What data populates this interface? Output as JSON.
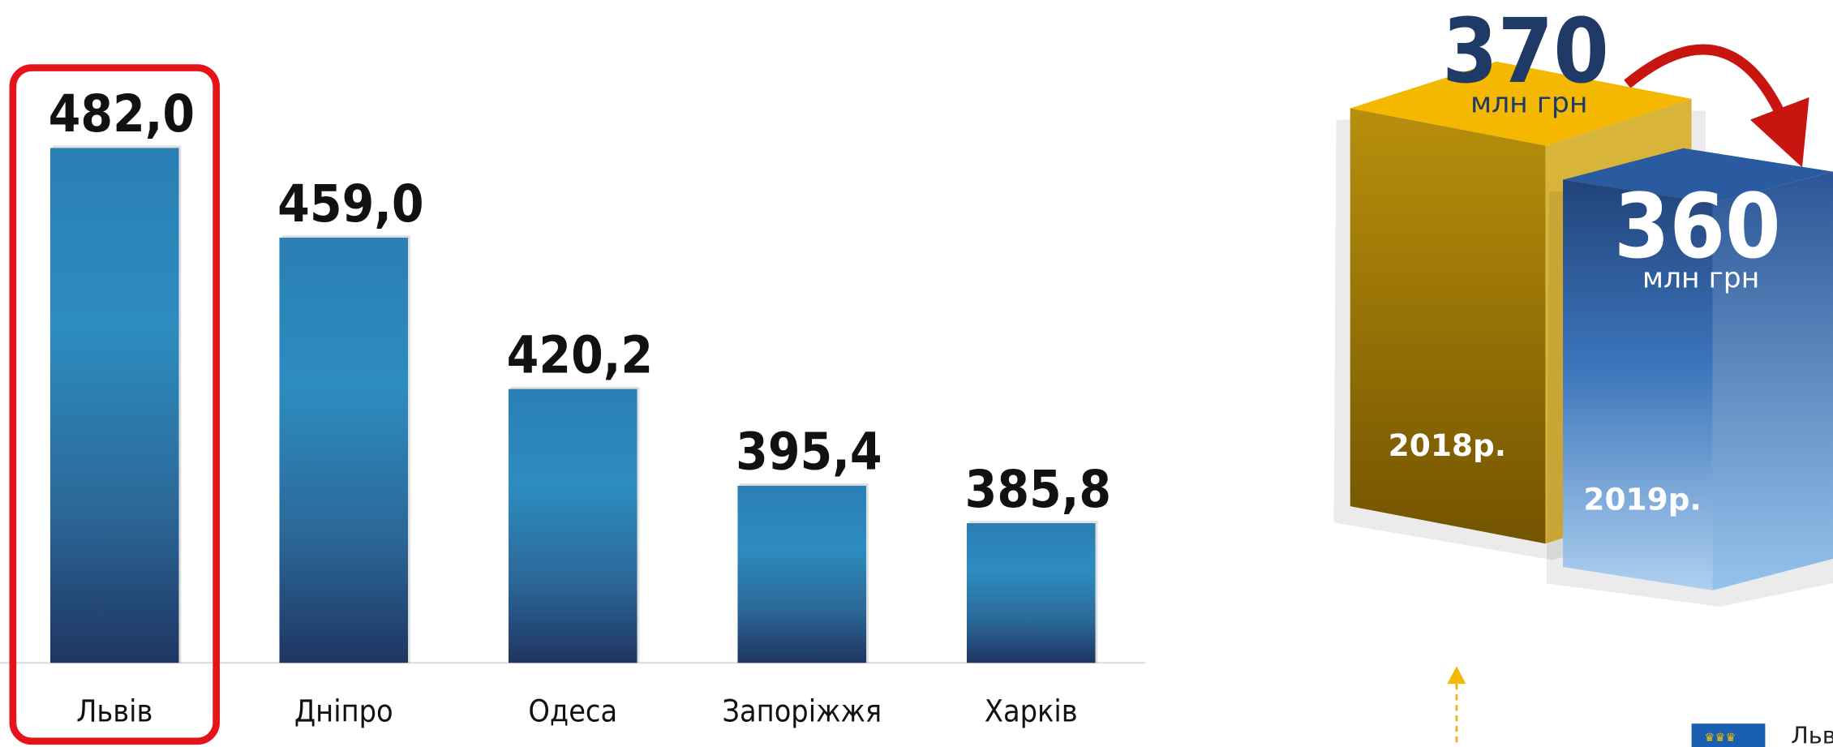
{
  "chart_data": [
    {
      "type": "bar",
      "categories": [
        "Львів",
        "Дніпро",
        "Одеса",
        "Запоріжжя",
        "Харків"
      ],
      "values": [
        482.0,
        459.0,
        420.2,
        395.4,
        385.8
      ],
      "value_labels": [
        "482,0",
        "459,0",
        "420,2",
        "395,4",
        "385,8"
      ],
      "ylim": [
        350,
        500
      ],
      "highlight": 0
    },
    {
      "type": "box3d",
      "categories": [
        "2018р.",
        "2019р."
      ],
      "values": [
        370,
        360
      ],
      "unit": "млн грн",
      "colors": [
        "#f5b800",
        "#2a5aa0"
      ]
    }
  ],
  "logo_text": "Льв"
}
